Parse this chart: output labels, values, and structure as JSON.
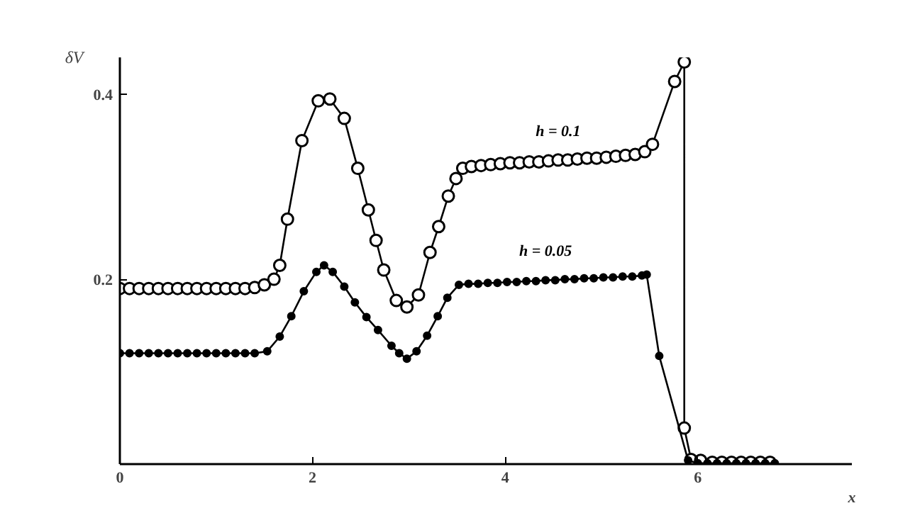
{
  "chart_data": {
    "type": "line",
    "xlabel": "x",
    "ylabel": "δV",
    "xlim": [
      0,
      7.6
    ],
    "ylim": [
      0,
      0.44
    ],
    "xticks": [
      0,
      2,
      4,
      6
    ],
    "yticks": [
      0.2,
      0.4
    ],
    "grid": false,
    "marker": "circle",
    "line_style": "solid",
    "series": [
      {
        "name": "h = 0.1",
        "color": "#000000",
        "x": [
          0,
          0.1,
          0.2,
          0.3,
          0.4,
          0.5,
          0.6,
          0.7,
          0.8,
          0.9,
          1.0,
          1.1,
          1.2,
          1.3,
          1.4,
          1.5,
          1.6,
          1.66,
          1.74,
          1.89,
          2.06,
          2.18,
          2.33,
          2.47,
          2.58,
          2.66,
          2.74,
          2.87,
          2.98,
          3.1,
          3.22,
          3.31,
          3.41,
          3.49,
          3.56,
          3.65,
          3.75,
          3.85,
          3.95,
          4.05,
          4.15,
          4.25,
          4.35,
          4.45,
          4.55,
          4.65,
          4.75,
          4.85,
          4.95,
          5.05,
          5.15,
          5.25,
          5.35,
          5.45,
          5.53,
          5.76,
          5.86,
          5.86,
          5.93,
          6.03,
          6.15,
          6.25,
          6.35,
          6.45,
          6.55,
          6.65,
          6.75
        ],
        "values": [
          0.19,
          0.19,
          0.19,
          0.19,
          0.19,
          0.19,
          0.19,
          0.19,
          0.19,
          0.19,
          0.19,
          0.19,
          0.19,
          0.19,
          0.191,
          0.194,
          0.2,
          0.215,
          0.265,
          0.35,
          0.393,
          0.395,
          0.374,
          0.32,
          0.275,
          0.242,
          0.21,
          0.177,
          0.17,
          0.183,
          0.229,
          0.257,
          0.29,
          0.309,
          0.32,
          0.322,
          0.323,
          0.324,
          0.325,
          0.326,
          0.326,
          0.327,
          0.327,
          0.328,
          0.329,
          0.329,
          0.33,
          0.331,
          0.331,
          0.332,
          0.333,
          0.334,
          0.335,
          0.338,
          0.346,
          0.414,
          0.435,
          0.039,
          0.005,
          0.004,
          0.002,
          0.002,
          0.002,
          0.002,
          0.002,
          0.002,
          0.002
        ]
      },
      {
        "name": "h = 0.05",
        "color": "#000000",
        "x": [
          0,
          0.1,
          0.2,
          0.3,
          0.4,
          0.5,
          0.6,
          0.7,
          0.8,
          0.9,
          1.0,
          1.1,
          1.2,
          1.3,
          1.4,
          1.53,
          1.66,
          1.78,
          1.91,
          2.04,
          2.12,
          2.21,
          2.33,
          2.44,
          2.56,
          2.68,
          2.82,
          2.9,
          2.98,
          3.08,
          3.19,
          3.3,
          3.4,
          3.52,
          3.62,
          3.72,
          3.82,
          3.92,
          4.02,
          4.12,
          4.22,
          4.32,
          4.42,
          4.52,
          4.62,
          4.72,
          4.82,
          4.92,
          5.02,
          5.12,
          5.22,
          5.32,
          5.42,
          5.47,
          5.6,
          5.9,
          6.0,
          6.1,
          6.2,
          6.3,
          6.4,
          6.5,
          6.6,
          6.7,
          6.8
        ],
        "values": [
          0.12,
          0.12,
          0.12,
          0.12,
          0.12,
          0.12,
          0.12,
          0.12,
          0.12,
          0.12,
          0.12,
          0.12,
          0.12,
          0.12,
          0.12,
          0.122,
          0.138,
          0.16,
          0.187,
          0.208,
          0.215,
          0.208,
          0.192,
          0.175,
          0.159,
          0.145,
          0.128,
          0.12,
          0.114,
          0.122,
          0.139,
          0.16,
          0.18,
          0.194,
          0.195,
          0.195,
          0.196,
          0.196,
          0.197,
          0.197,
          0.198,
          0.198,
          0.199,
          0.199,
          0.2,
          0.2,
          0.201,
          0.201,
          0.202,
          0.202,
          0.203,
          0.203,
          0.204,
          0.205,
          0.117,
          0.004,
          0.001,
          0.001,
          0.001,
          0.001,
          0.001,
          0.001,
          0.001,
          0.001,
          0.001
        ]
      }
    ]
  }
}
